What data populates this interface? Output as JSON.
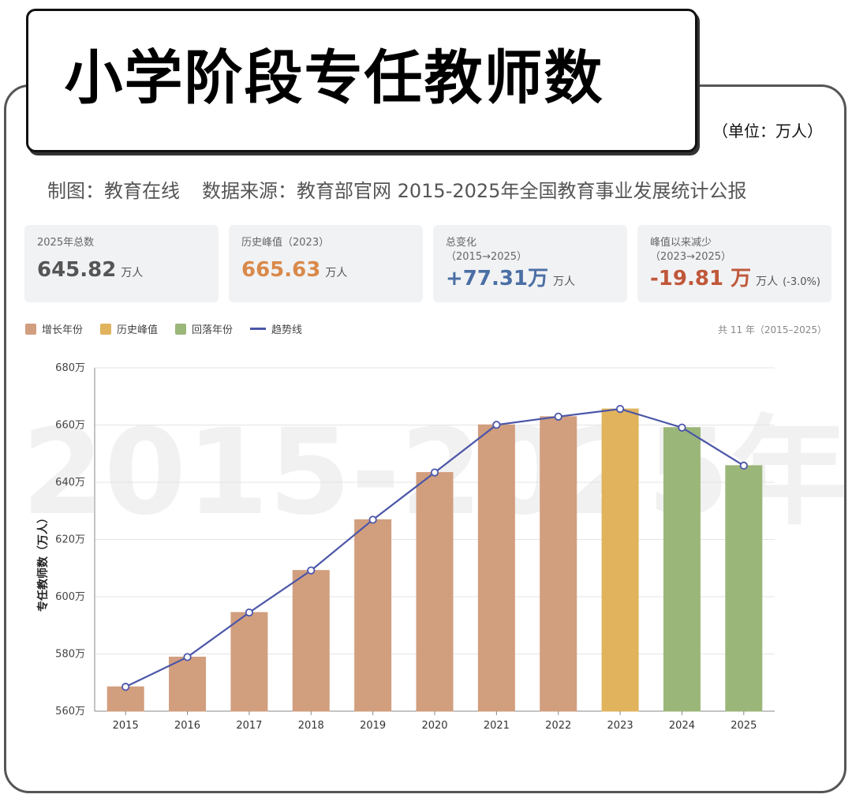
{
  "header": {
    "title": "小学阶段专任教师数",
    "unit": "（单位：万人）",
    "source_author": "制图：教育在线",
    "source_data": "数据来源：教育部官网 2015-2025年全国教育事业发展统计公报"
  },
  "cards": [
    {
      "label": "2025年总数",
      "label2": "",
      "value": "645.82",
      "unit": "万人",
      "pct": "",
      "color": "#555555"
    },
    {
      "label": "历史峰值（2023）",
      "label2": "",
      "value": "665.63",
      "unit": "万人",
      "pct": "",
      "color": "#d9894a"
    },
    {
      "label": "总变化",
      "label2": "（2015→2025）",
      "value": "+77.31万",
      "unit": "万人",
      "pct": "",
      "color": "#4a6fa5"
    },
    {
      "label": "峰值以来减少",
      "label2": "（2023→2025）",
      "value": "-19.81 万",
      "unit": "万人",
      "pct": "(-3.0%)",
      "color": "#c0573a"
    }
  ],
  "legend": {
    "growth": "增长年份",
    "peak": "历史峰值",
    "decline": "回落年份",
    "trend": "趋势线"
  },
  "count_label": "共 11 年（2015–2025）",
  "watermark": "2015-2025年",
  "colors": {
    "growth": "#d19e7e",
    "peak": "#e0b35c",
    "decline": "#9bb679",
    "trend": "#4b56a8"
  },
  "chart_data": {
    "type": "bar",
    "categories": [
      "2015",
      "2016",
      "2017",
      "2018",
      "2019",
      "2020",
      "2021",
      "2022",
      "2023",
      "2024",
      "2025"
    ],
    "values": [
      568.51,
      578.91,
      594.49,
      609.19,
      626.91,
      643.42,
      660.08,
      662.94,
      665.63,
      659.11,
      645.82
    ],
    "kinds": [
      "growth",
      "growth",
      "growth",
      "growth",
      "growth",
      "growth",
      "growth",
      "growth",
      "peak",
      "decline",
      "decline"
    ],
    "trend_line": true,
    "ylabel": "专任教师数（万人）",
    "ylim": [
      560,
      680
    ],
    "yticks": [
      560,
      580,
      600,
      620,
      640,
      660,
      680
    ],
    "ytick_suffix": "万",
    "grid": true
  }
}
